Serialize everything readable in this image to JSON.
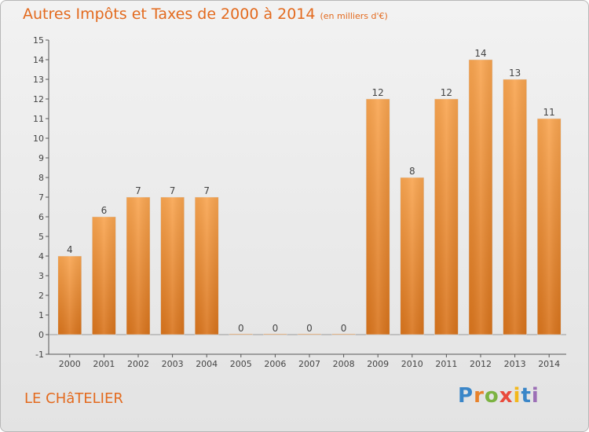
{
  "chart_data": {
    "type": "bar",
    "title": "Autres Impôts et Taxes de 2000 à 2014",
    "subtitle": "(en milliers d'€)",
    "categories": [
      "2000",
      "2001",
      "2002",
      "2003",
      "2004",
      "2005",
      "2006",
      "2007",
      "2008",
      "2009",
      "2010",
      "2011",
      "2012",
      "2013",
      "2014"
    ],
    "values": [
      4,
      6,
      7,
      7,
      7,
      0,
      0,
      0,
      0,
      12,
      8,
      12,
      14,
      13,
      11
    ],
    "value_labels": [
      "4",
      "6",
      "7",
      "7",
      "7",
      "0",
      "0",
      "0",
      "0",
      "12",
      "8",
      "12",
      "14",
      "13",
      "11"
    ],
    "ylim": [
      -1,
      15
    ],
    "yticks": [
      "-1",
      "0",
      "1",
      "2",
      "3",
      "4",
      "5",
      "6",
      "7",
      "8",
      "9",
      "10",
      "11",
      "12",
      "13",
      "14",
      "15"
    ],
    "xlabel": "",
    "ylabel": "",
    "grid": false,
    "colors": {
      "bar_light": "#f9a550",
      "bar_dark": "#d9741c",
      "text": "#e36a1e",
      "axis": "#555555"
    }
  },
  "footer": {
    "place": "LE CHâTELIER",
    "logo_letters": [
      "P",
      "r",
      "o",
      "x",
      "i",
      "t",
      "i"
    ],
    "logo_colors": [
      "#3a86c8",
      "#e8822a",
      "#7cb342",
      "#e94b3c",
      "#f3b81d",
      "#3a86c8",
      "#9c6fb6"
    ]
  }
}
